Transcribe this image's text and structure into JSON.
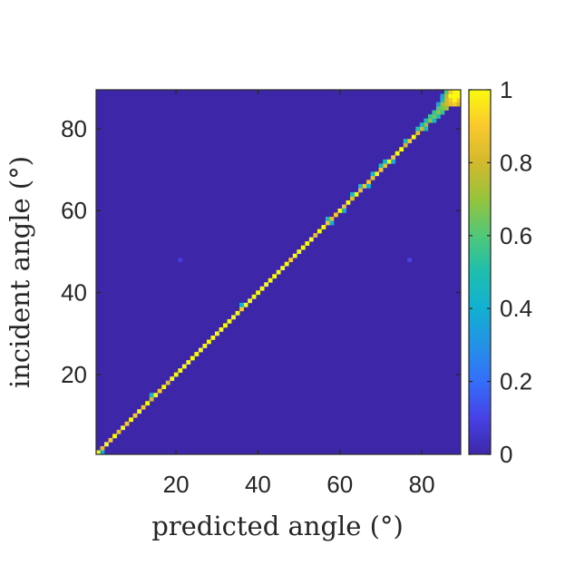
{
  "chart_data": {
    "type": "heatmap",
    "title": "",
    "xlabel": "predicted angle (°)",
    "ylabel": "incident angle (°)",
    "xlim": [
      0.5,
      89.5
    ],
    "ylim": [
      0.5,
      89.5
    ],
    "xticks": [
      20,
      40,
      60,
      80
    ],
    "yticks": [
      20,
      40,
      60,
      80
    ],
    "xtick_labels": [
      "20",
      "40",
      "60",
      "80"
    ],
    "ytick_labels": [
      "20",
      "40",
      "60",
      "80"
    ],
    "colorbar": {
      "range": [
        0,
        1
      ],
      "ticks": [
        0,
        0.2,
        0.4,
        0.6,
        0.8,
        1
      ],
      "labels": [
        "0",
        "0.2",
        "0.4",
        "0.6",
        "0.8",
        "1"
      ],
      "colormap": "parula"
    },
    "background_value": 0.0,
    "description_of_values": "Diagonal: predicted angle equals incident angle with value ~1; slight spread near 90 degrees.",
    "cells": [
      {
        "x": 1,
        "y": 1,
        "v": 1
      },
      {
        "x": 2,
        "y": 2,
        "v": 0.85
      },
      {
        "x": 3,
        "y": 3,
        "v": 1
      },
      {
        "x": 4,
        "y": 4,
        "v": 0.9
      },
      {
        "x": 5,
        "y": 5,
        "v": 1
      },
      {
        "x": 6,
        "y": 6,
        "v": 0.85
      },
      {
        "x": 7,
        "y": 7,
        "v": 1
      },
      {
        "x": 8,
        "y": 8,
        "v": 0.9
      },
      {
        "x": 9,
        "y": 9,
        "v": 1
      },
      {
        "x": 10,
        "y": 10,
        "v": 0.9
      },
      {
        "x": 11,
        "y": 11,
        "v": 1
      },
      {
        "x": 12,
        "y": 12,
        "v": 0.9
      },
      {
        "x": 13,
        "y": 13,
        "v": 1
      },
      {
        "x": 14,
        "y": 14,
        "v": 0.8
      },
      {
        "x": 15,
        "y": 15,
        "v": 1
      },
      {
        "x": 16,
        "y": 16,
        "v": 0.9
      },
      {
        "x": 17,
        "y": 17,
        "v": 1
      },
      {
        "x": 18,
        "y": 18,
        "v": 0.85
      },
      {
        "x": 19,
        "y": 19,
        "v": 1
      },
      {
        "x": 20,
        "y": 20,
        "v": 1
      },
      {
        "x": 21,
        "y": 21,
        "v": 1
      },
      {
        "x": 22,
        "y": 22,
        "v": 1
      },
      {
        "x": 23,
        "y": 23,
        "v": 1
      },
      {
        "x": 24,
        "y": 24,
        "v": 1
      },
      {
        "x": 25,
        "y": 25,
        "v": 1
      },
      {
        "x": 26,
        "y": 26,
        "v": 1
      },
      {
        "x": 27,
        "y": 27,
        "v": 1
      },
      {
        "x": 28,
        "y": 28,
        "v": 1
      },
      {
        "x": 29,
        "y": 29,
        "v": 1
      },
      {
        "x": 30,
        "y": 30,
        "v": 1
      },
      {
        "x": 31,
        "y": 31,
        "v": 1
      },
      {
        "x": 32,
        "y": 32,
        "v": 1
      },
      {
        "x": 33,
        "y": 33,
        "v": 1
      },
      {
        "x": 34,
        "y": 34,
        "v": 1
      },
      {
        "x": 35,
        "y": 35,
        "v": 1
      },
      {
        "x": 36,
        "y": 36,
        "v": 0.9
      },
      {
        "x": 37,
        "y": 37,
        "v": 1
      },
      {
        "x": 38,
        "y": 38,
        "v": 1
      },
      {
        "x": 39,
        "y": 39,
        "v": 1
      },
      {
        "x": 40,
        "y": 40,
        "v": 1
      },
      {
        "x": 41,
        "y": 41,
        "v": 1
      },
      {
        "x": 42,
        "y": 42,
        "v": 1
      },
      {
        "x": 43,
        "y": 43,
        "v": 1
      },
      {
        "x": 44,
        "y": 44,
        "v": 1
      },
      {
        "x": 45,
        "y": 45,
        "v": 1
      },
      {
        "x": 46,
        "y": 46,
        "v": 1
      },
      {
        "x": 47,
        "y": 47,
        "v": 1
      },
      {
        "x": 48,
        "y": 48,
        "v": 0.9
      },
      {
        "x": 49,
        "y": 49,
        "v": 1
      },
      {
        "x": 50,
        "y": 50,
        "v": 1
      },
      {
        "x": 51,
        "y": 51,
        "v": 1
      },
      {
        "x": 52,
        "y": 52,
        "v": 1
      },
      {
        "x": 53,
        "y": 53,
        "v": 1
      },
      {
        "x": 54,
        "y": 54,
        "v": 0.85
      },
      {
        "x": 55,
        "y": 55,
        "v": 1
      },
      {
        "x": 56,
        "y": 56,
        "v": 1
      },
      {
        "x": 57,
        "y": 57,
        "v": 0.9
      },
      {
        "x": 58,
        "y": 58,
        "v": 0.85
      },
      {
        "x": 59,
        "y": 59,
        "v": 0.9
      },
      {
        "x": 60,
        "y": 60,
        "v": 1
      },
      {
        "x": 61,
        "y": 61,
        "v": 0.85
      },
      {
        "x": 62,
        "y": 62,
        "v": 1
      },
      {
        "x": 63,
        "y": 63,
        "v": 0.85
      },
      {
        "x": 64,
        "y": 64,
        "v": 1
      },
      {
        "x": 65,
        "y": 65,
        "v": 0.85
      },
      {
        "x": 66,
        "y": 66,
        "v": 0.9
      },
      {
        "x": 67,
        "y": 67,
        "v": 0.9
      },
      {
        "x": 68,
        "y": 68,
        "v": 0.85
      },
      {
        "x": 69,
        "y": 69,
        "v": 1
      },
      {
        "x": 70,
        "y": 70,
        "v": 0.9
      },
      {
        "x": 71,
        "y": 71,
        "v": 0.85
      },
      {
        "x": 72,
        "y": 72,
        "v": 1
      },
      {
        "x": 73,
        "y": 73,
        "v": 0.9
      },
      {
        "x": 74,
        "y": 74,
        "v": 1
      },
      {
        "x": 75,
        "y": 75,
        "v": 1
      },
      {
        "x": 76,
        "y": 76,
        "v": 0.8
      },
      {
        "x": 77,
        "y": 77,
        "v": 0.9
      },
      {
        "x": 78,
        "y": 78,
        "v": 1
      },
      {
        "x": 79,
        "y": 79,
        "v": 0.85
      },
      {
        "x": 80,
        "y": 80,
        "v": 0.8
      },
      {
        "x": 81,
        "y": 81,
        "v": 0.7
      },
      {
        "x": 82,
        "y": 82,
        "v": 0.7
      },
      {
        "x": 83,
        "y": 83,
        "v": 0.65
      },
      {
        "x": 84,
        "y": 84,
        "v": 0.7
      },
      {
        "x": 85,
        "y": 85,
        "v": 0.65
      },
      {
        "x": 86,
        "y": 86,
        "v": 0.8
      },
      {
        "x": 87,
        "y": 87,
        "v": 0.9
      },
      {
        "x": 88,
        "y": 88,
        "v": 1
      },
      {
        "x": 89,
        "y": 89,
        "v": 1
      },
      {
        "x": 2,
        "y": 1,
        "v": 0.35
      },
      {
        "x": 14,
        "y": 15,
        "v": 0.45
      },
      {
        "x": 36,
        "y": 37,
        "v": 0.4
      },
      {
        "x": 57,
        "y": 58,
        "v": 0.5
      },
      {
        "x": 58,
        "y": 57,
        "v": 0.4
      },
      {
        "x": 61,
        "y": 60,
        "v": 0.4
      },
      {
        "x": 63,
        "y": 64,
        "v": 0.45
      },
      {
        "x": 65,
        "y": 66,
        "v": 0.45
      },
      {
        "x": 67,
        "y": 66,
        "v": 0.4
      },
      {
        "x": 68,
        "y": 69,
        "v": 0.45
      },
      {
        "x": 70,
        "y": 71,
        "v": 0.45
      },
      {
        "x": 71,
        "y": 72,
        "v": 0.45
      },
      {
        "x": 73,
        "y": 72,
        "v": 0.4
      },
      {
        "x": 76,
        "y": 77,
        "v": 0.5
      },
      {
        "x": 79,
        "y": 80,
        "v": 0.5
      },
      {
        "x": 80,
        "y": 81,
        "v": 0.45
      },
      {
        "x": 81,
        "y": 80,
        "v": 0.5
      },
      {
        "x": 81,
        "y": 82,
        "v": 0.45
      },
      {
        "x": 82,
        "y": 83,
        "v": 0.55
      },
      {
        "x": 83,
        "y": 82,
        "v": 0.45
      },
      {
        "x": 83,
        "y": 84,
        "v": 0.55
      },
      {
        "x": 84,
        "y": 83,
        "v": 0.5
      },
      {
        "x": 84,
        "y": 85,
        "v": 0.6
      },
      {
        "x": 85,
        "y": 84,
        "v": 0.55
      },
      {
        "x": 85,
        "y": 86,
        "v": 0.7
      },
      {
        "x": 86,
        "y": 85,
        "v": 0.7
      },
      {
        "x": 86,
        "y": 87,
        "v": 0.8
      },
      {
        "x": 86,
        "y": 88,
        "v": 0.75
      },
      {
        "x": 86,
        "y": 89,
        "v": 0.6
      },
      {
        "x": 87,
        "y": 86,
        "v": 0.85
      },
      {
        "x": 87,
        "y": 88,
        "v": 1
      },
      {
        "x": 87,
        "y": 89,
        "v": 0.9
      },
      {
        "x": 88,
        "y": 86,
        "v": 0.9
      },
      {
        "x": 88,
        "y": 87,
        "v": 1
      },
      {
        "x": 88,
        "y": 89,
        "v": 1
      },
      {
        "x": 89,
        "y": 86,
        "v": 0.8
      },
      {
        "x": 89,
        "y": 87,
        "v": 0.9
      },
      {
        "x": 89,
        "y": 88,
        "v": 1
      },
      {
        "x": 85,
        "y": 87,
        "v": 0.45
      },
      {
        "x": 85,
        "y": 88,
        "v": 0.35
      },
      {
        "x": 84,
        "y": 86,
        "v": 0.35
      },
      {
        "x": 21,
        "y": 48,
        "v": 0.08
      },
      {
        "x": 77,
        "y": 48,
        "v": 0.1
      }
    ]
  }
}
